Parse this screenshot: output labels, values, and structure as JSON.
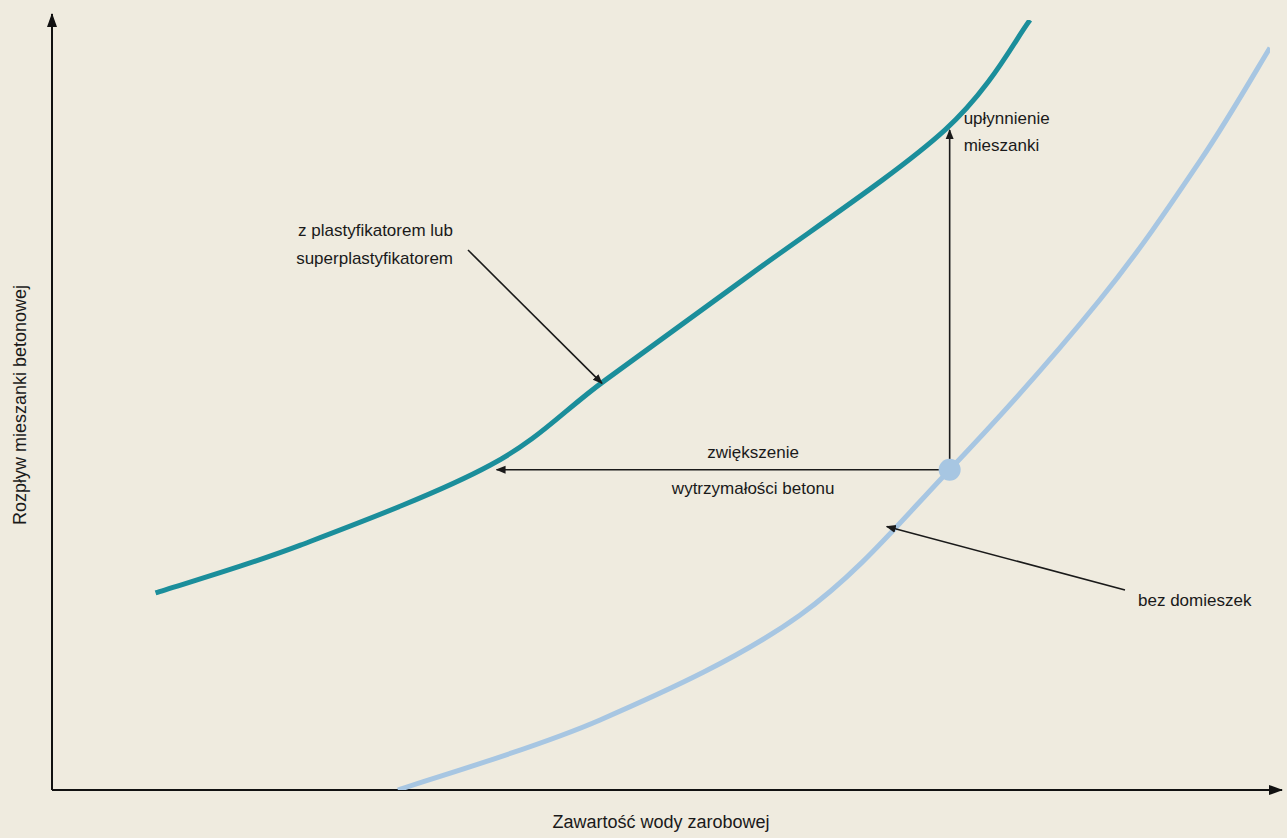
{
  "chart_data": {
    "type": "line",
    "x_label": "Zawartość wody zarobowej",
    "y_label": "Rozpływ mieszanki betonowej",
    "xlim": [
      0,
      100
    ],
    "ylim": [
      0,
      100
    ],
    "tick_labels": false,
    "grid": false,
    "series": [
      {
        "name": "z plastyfikatorem lub superplastyfikatorem",
        "color": "#1b8e9b",
        "x": [
          8.5,
          20.4,
          36.0,
          45.4,
          57.3,
          73.3,
          80.3
        ],
        "values": [
          25.6,
          31.8,
          42.2,
          53.2,
          66.9,
          85.7,
          100
        ]
      },
      {
        "name": "bez domieszek",
        "color": "#a7c6e2",
        "x": [
          28.4,
          45.0,
          61.4,
          73.7,
          86.0,
          94.3,
          100
        ],
        "values": [
          0,
          9.1,
          22.7,
          41.6,
          63.6,
          81.8,
          96.4
        ]
      }
    ],
    "annotations": [
      {
        "text": "upłynnienie mieszanki",
        "x": 73.7,
        "y": 41.6,
        "x2": 73.7,
        "y2": 85.7
      },
      {
        "text": "zwiększenie wytrzymałości betonu",
        "x": 73.7,
        "y": 41.6,
        "x2": 36.5,
        "y2": 41.6
      }
    ]
  }
}
